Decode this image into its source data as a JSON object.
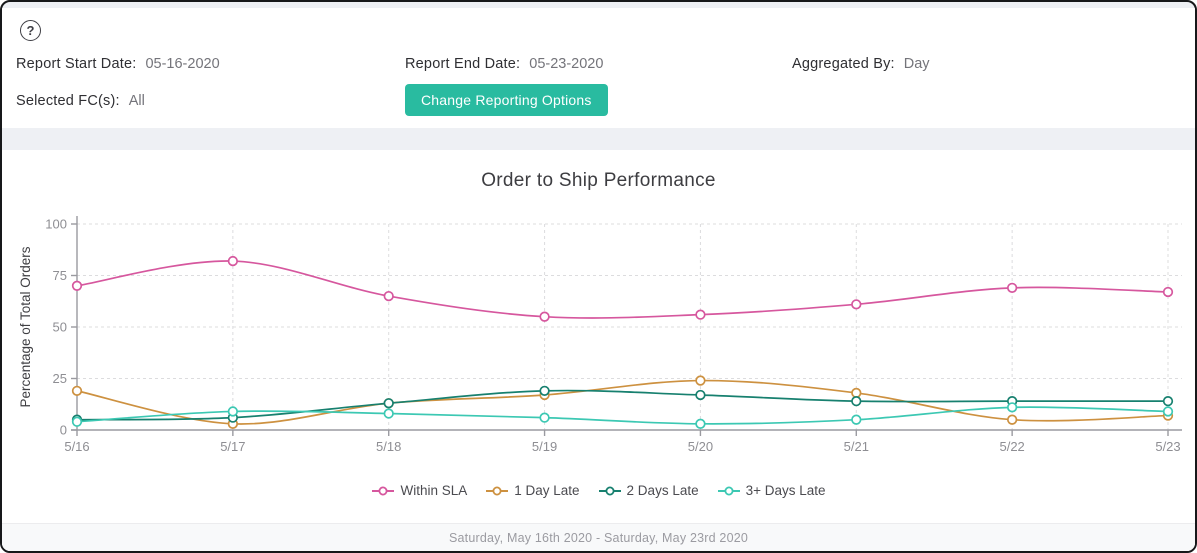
{
  "header": {
    "help_icon": "?",
    "fields": [
      {
        "label": "Report Start Date:",
        "value": "05-16-2020"
      },
      {
        "label": "Report End Date:",
        "value": "05-23-2020"
      },
      {
        "label": "Aggregated By:",
        "value": "Day"
      },
      {
        "label": "Selected FC(s):",
        "value": "All"
      }
    ],
    "button_label": "Change Reporting Options"
  },
  "chart_data": {
    "type": "line",
    "title": "Order to Ship Performance",
    "xlabel": "",
    "ylabel": "Percentage of Total Orders",
    "categories": [
      "5/16",
      "5/17",
      "5/18",
      "5/19",
      "5/20",
      "5/21",
      "5/22",
      "5/23"
    ],
    "ylim": [
      0,
      100
    ],
    "yticks": [
      0,
      25,
      50,
      75,
      100
    ],
    "grid": true,
    "legend_position": "bottom",
    "series": [
      {
        "name": "Within SLA",
        "color": "#d6579e",
        "values": [
          70,
          82,
          65,
          55,
          56,
          61,
          69,
          67
        ]
      },
      {
        "name": "1 Day Late",
        "color": "#cd9140",
        "values": [
          19,
          3,
          13,
          17,
          24,
          18,
          5,
          7
        ]
      },
      {
        "name": "2 Days Late",
        "color": "#17806f",
        "values": [
          5,
          6,
          13,
          19,
          17,
          14,
          14,
          14
        ]
      },
      {
        "name": "3+ Days Late",
        "color": "#3cc8b3",
        "values": [
          4,
          9,
          8,
          6,
          3,
          5,
          11,
          9
        ]
      }
    ]
  },
  "footer": {
    "date_range": "Saturday, May 16th 2020 - Saturday, May 23rd 2020"
  },
  "colors": {
    "accent": "#29bba0",
    "grid": "#dcdcde",
    "axis": "#9a9aa0",
    "tick_text": "#8e8e93",
    "axis_title": "#3f3f43"
  }
}
